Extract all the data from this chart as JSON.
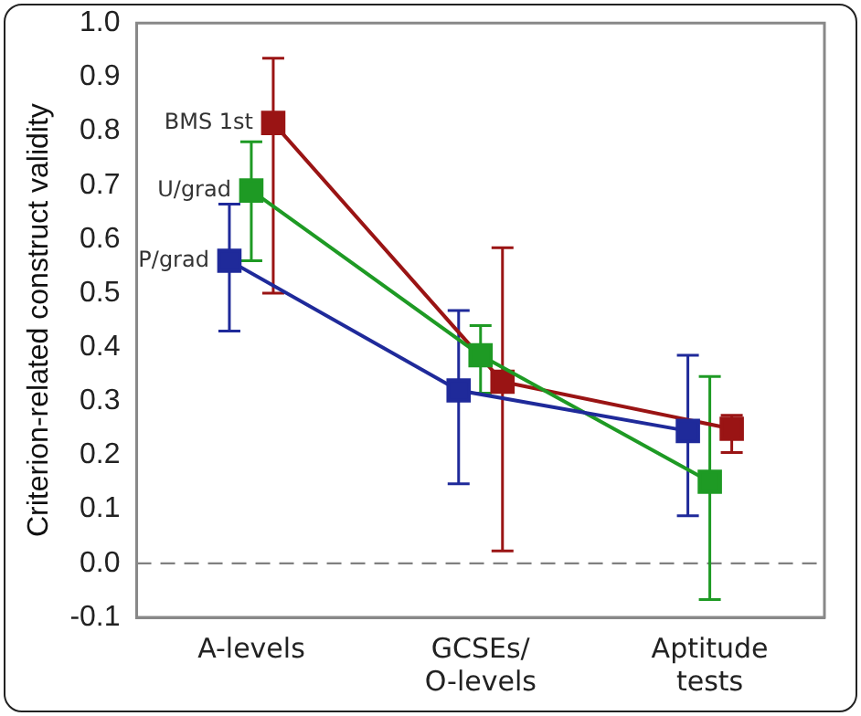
{
  "chart_data": {
    "type": "line",
    "ylabel": "Criterion-related construct validity",
    "categories": [
      "A-levels",
      "GCSEs/\nO-levels",
      "Aptitude\ntests"
    ],
    "series": [
      {
        "name": "P/grad",
        "color": "#1f2a9a",
        "values": [
          0.56,
          0.32,
          0.245
        ],
        "errors": [
          [
            0.43,
            0.665
          ],
          [
            0.147,
            0.468
          ],
          [
            0.088,
            0.385
          ]
        ]
      },
      {
        "name": "U/grad",
        "color": "#1e9a24",
        "values": [
          0.69,
          0.385,
          0.151
        ],
        "errors": [
          [
            0.56,
            0.78
          ],
          [
            0.315,
            0.44
          ],
          [
            -0.067,
            0.346
          ]
        ]
      },
      {
        "name": "BMS 1st",
        "color": "#9a1414",
        "values": [
          0.815,
          0.336,
          0.249
        ],
        "errors": [
          [
            0.5,
            0.935
          ],
          [
            0.023,
            0.584
          ],
          [
            0.205,
            0.274
          ]
        ]
      }
    ],
    "ylim": [
      -0.1,
      1.0
    ],
    "yticks": [
      {
        "value": -0.1,
        "label": "-0.1"
      },
      {
        "value": 0,
        "label": "0.0"
      },
      {
        "value": 0.1,
        "label": "0.1"
      },
      {
        "value": 0.2,
        "label": "0.2"
      },
      {
        "value": 0.3,
        "label": "0.3"
      },
      {
        "value": 0.4,
        "label": "0.4"
      },
      {
        "value": 0.5,
        "label": "0.5"
      },
      {
        "value": 0.6,
        "label": "0.6"
      },
      {
        "value": 0.7,
        "label": "0.7"
      },
      {
        "value": 0.8,
        "label": "0.8"
      },
      {
        "value": 0.9,
        "label": "0.9"
      },
      {
        "value": 1.0,
        "label": "1.0"
      }
    ],
    "ref_lines": [
      {
        "axis": "y",
        "value": 0,
        "color": "#808080",
        "line_style": "dashed"
      }
    ],
    "grid": false,
    "legend": false,
    "marker": "square",
    "line_style": "solid"
  }
}
